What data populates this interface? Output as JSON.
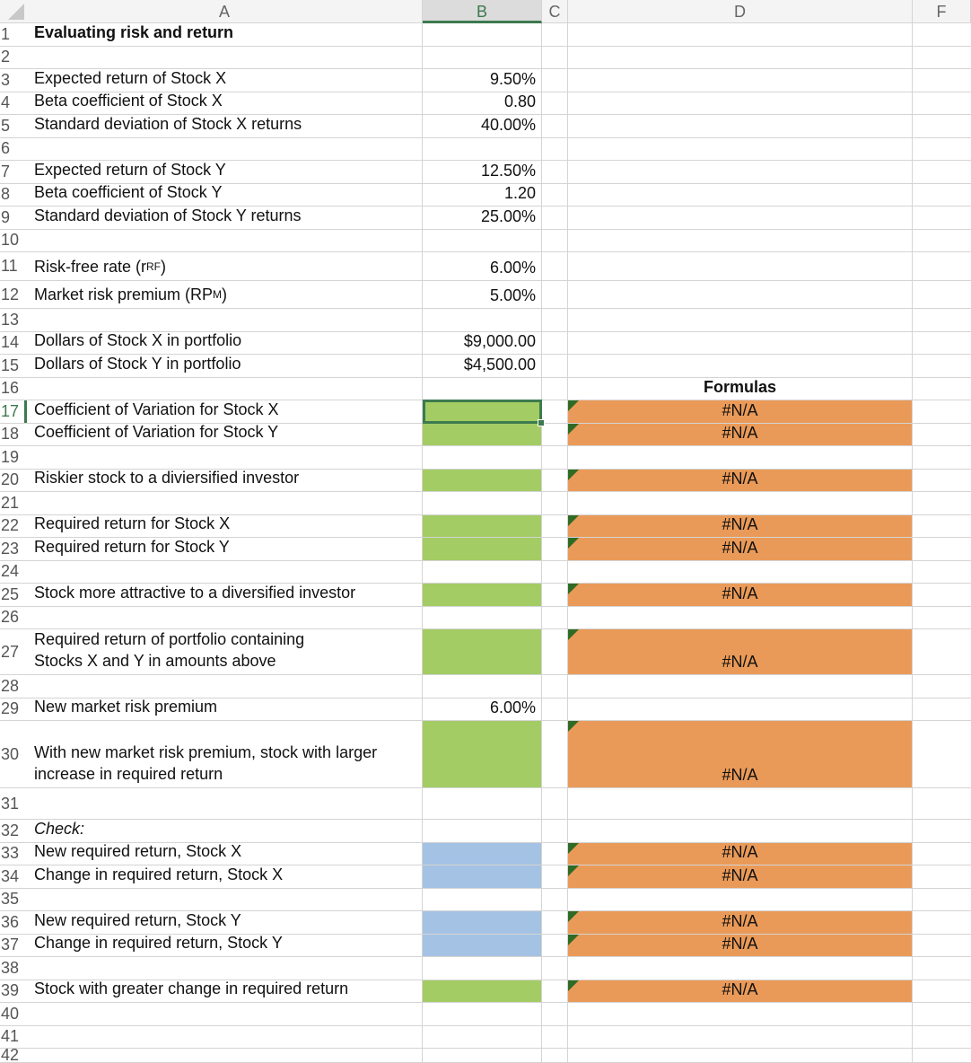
{
  "columns": [
    {
      "letter": "A",
      "selected": false
    },
    {
      "letter": "B",
      "selected": true
    },
    {
      "letter": "C",
      "selected": false
    },
    {
      "letter": "D",
      "selected": false
    },
    {
      "letter": "F",
      "selected": false
    }
  ],
  "selected_cell": "B17",
  "colors": {
    "input_fill": "#a3cc64",
    "check_fill": "#a4c2e4",
    "formula_fill": "#ea9a58",
    "error_indicator": "#2f6b24"
  },
  "rows": [
    {
      "num": "1",
      "a": "Evaluating risk and return",
      "a_style": "bold"
    },
    {
      "num": "2"
    },
    {
      "num": "3",
      "a": "Expected return of Stock X",
      "b": "9.50%"
    },
    {
      "num": "4",
      "a": "Beta coefficient of Stock X",
      "b": "0.80"
    },
    {
      "num": "5",
      "a": "Standard deviation of Stock X returns",
      "b": "40.00%"
    },
    {
      "num": "6"
    },
    {
      "num": "7",
      "a": "Expected return of Stock Y",
      "b": "12.50%"
    },
    {
      "num": "8",
      "a": "Beta coefficient of Stock Y",
      "b": "1.20"
    },
    {
      "num": "9",
      "a": "Standard deviation of Stock Y returns",
      "b": "25.00%"
    },
    {
      "num": "10"
    },
    {
      "num": "11",
      "a": "Risk-free rate (r",
      "a_sub": "RF",
      "a_suffix": ")",
      "b": "6.00%"
    },
    {
      "num": "12",
      "a": "Market risk premium (RP",
      "a_sub": "M",
      "a_suffix": ")",
      "b": "5.00%"
    },
    {
      "num": "13"
    },
    {
      "num": "14",
      "a": "Dollars of Stock X in portfolio",
      "b": "$9,000.00"
    },
    {
      "num": "15",
      "a": "Dollars of Stock Y in portfolio",
      "b": "$4,500.00"
    },
    {
      "num": "16",
      "d": "Formulas",
      "d_style": "bold"
    },
    {
      "num": "17",
      "a": "Coefficient of Variation for Stock X",
      "b_fill": "green",
      "d": "#N/A",
      "d_fill": "orange"
    },
    {
      "num": "18",
      "a": "Coefficient of Variation for Stock Y",
      "b_fill": "green",
      "d": "#N/A",
      "d_fill": "orange"
    },
    {
      "num": "19"
    },
    {
      "num": "20",
      "a": "Riskier stock to a diviersified investor",
      "b_fill": "green",
      "d": "#N/A",
      "d_fill": "orange"
    },
    {
      "num": "21"
    },
    {
      "num": "22",
      "a": "Required return for Stock X",
      "b_fill": "green",
      "d": "#N/A",
      "d_fill": "orange"
    },
    {
      "num": "23",
      "a": "Required return for Stock Y",
      "b_fill": "green",
      "d": "#N/A",
      "d_fill": "orange"
    },
    {
      "num": "24"
    },
    {
      "num": "25",
      "a": "Stock more attractive to a diversified investor",
      "b_fill": "green",
      "d": "#N/A",
      "d_fill": "orange"
    },
    {
      "num": "26"
    },
    {
      "num": "27",
      "a": "Required return of portfolio containing\nStocks X and Y in amounts above",
      "b_fill": "green",
      "d": "#N/A",
      "d_fill": "orange"
    },
    {
      "num": "28"
    },
    {
      "num": "29",
      "a": "New market risk premium",
      "b": "6.00%"
    },
    {
      "num": "30",
      "a": "With new market risk premium, stock with larger\nincrease in required return",
      "b_fill": "green",
      "d": "#N/A",
      "d_fill": "orange"
    },
    {
      "num": "31"
    },
    {
      "num": "32",
      "a": "Check:",
      "a_style": "ital"
    },
    {
      "num": "33",
      "a": "New required return, Stock X",
      "b_fill": "blue",
      "d": "#N/A",
      "d_fill": "orange"
    },
    {
      "num": "34",
      "a": "Change in required return, Stock X",
      "b_fill": "blue",
      "d": "#N/A",
      "d_fill": "orange"
    },
    {
      "num": "35"
    },
    {
      "num": "36",
      "a": "New required return, Stock Y",
      "b_fill": "blue",
      "d": "#N/A",
      "d_fill": "orange"
    },
    {
      "num": "37",
      "a": "Change in required return, Stock Y",
      "b_fill": "blue",
      "d": "#N/A",
      "d_fill": "orange"
    },
    {
      "num": "38"
    },
    {
      "num": "39",
      "a": "Stock with greater change in required return",
      "b_fill": "green",
      "d": "#N/A",
      "d_fill": "orange"
    },
    {
      "num": "40"
    },
    {
      "num": "41"
    },
    {
      "num": "42"
    }
  ]
}
